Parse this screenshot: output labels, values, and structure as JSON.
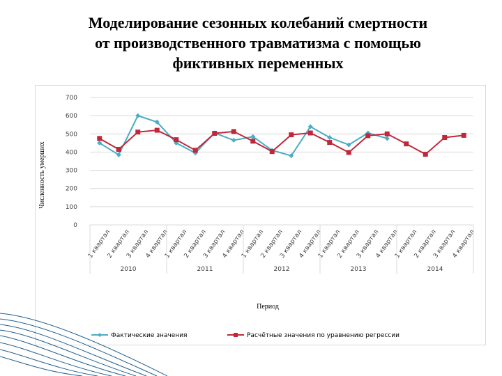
{
  "slide": {
    "title_lines": [
      "Моделирование сезонных колебаний смертности",
      "от производственного травматизма с помощью",
      "фиктивных переменных"
    ]
  },
  "colors": {
    "actual": "#4BACC6",
    "predicted": "#C0283A",
    "grid": "#d9d9d9",
    "decor": "#1F5E8C"
  },
  "chart_data": {
    "type": "line",
    "title": "",
    "xlabel": "Период",
    "ylabel": "Численность умерших",
    "ylim": [
      0,
      700
    ],
    "yticks": [
      0,
      100,
      200,
      300,
      400,
      500,
      600,
      700
    ],
    "grid": true,
    "legend_position": "bottom",
    "categories": [
      "1 квартал",
      "2 квартал",
      "3 квартал",
      "4 квартал",
      "1 квартал",
      "2 квартал",
      "3 квартал",
      "4 квартал",
      "1 квартал",
      "2 квартал",
      "3 квартал",
      "4 квартал",
      "1 квартал",
      "2 квартал",
      "3 квартал",
      "4 квартал",
      "1 квартал",
      "2 квартал",
      "3 квартал",
      "4 квартал"
    ],
    "years": [
      "2010",
      "2011",
      "2012",
      "2013",
      "2014"
    ],
    "series": [
      {
        "name": "Фактические значения",
        "color": "#4BACC6",
        "marker": "diamond",
        "values": [
          450,
          385,
          600,
          565,
          450,
          395,
          505,
          465,
          485,
          410,
          380,
          540,
          480,
          440,
          505,
          475,
          null,
          null,
          null,
          null
        ]
      },
      {
        "name": "Расчётные значения по уравнению регрессии",
        "color": "#C0283A",
        "marker": "square",
        "values": [
          475,
          415,
          510,
          520,
          468,
          410,
          503,
          513,
          460,
          403,
          495,
          505,
          453,
          398,
          490,
          500,
          445,
          388,
          480,
          492
        ]
      }
    ]
  }
}
